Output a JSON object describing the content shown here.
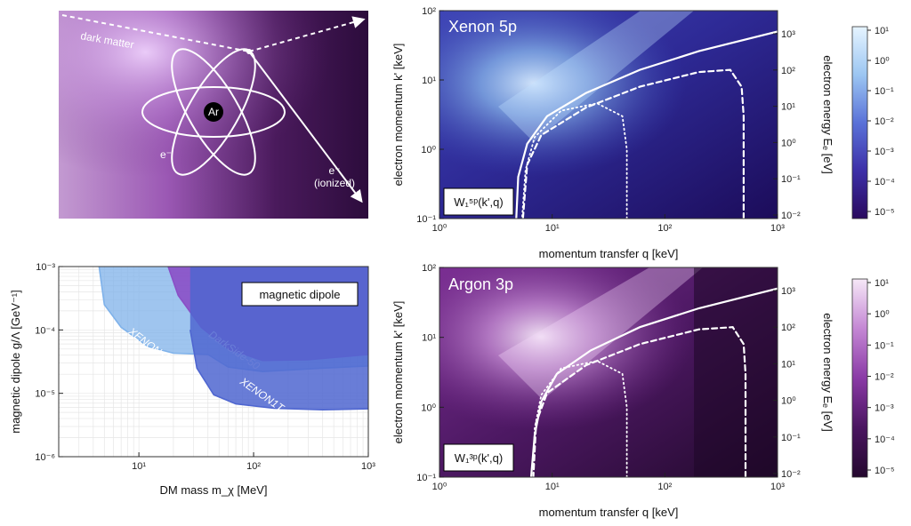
{
  "schematic": {
    "dark_matter_label": "dark matter",
    "nucleus_label": "Ar",
    "electron_label": "e⁻",
    "outgoing_label": "e⁻",
    "outgoing_sub": "(ionized)"
  },
  "chart_data": [
    {
      "type": "heatmap",
      "title": "Xenon 5p",
      "inset_label": "W₁⁵ᵖ(k',q)",
      "xlabel": "momentum transfer q [keV]",
      "ylabel": "electron momentum k' [keV]",
      "y2label": "electron energy Eₑ [eV]",
      "xlim": [
        1,
        1000
      ],
      "ylim": [
        0.1,
        100
      ],
      "xscale": "log",
      "yscale": "log",
      "x_ticks": [
        "10⁰",
        "10¹",
        "10²",
        "10³"
      ],
      "y_ticks": [
        "10⁻¹",
        "10⁰",
        "10¹",
        "10²"
      ],
      "y2_ticks": [
        "10⁻²",
        "10⁻¹",
        "10⁰",
        "10¹",
        "10²",
        "10³"
      ],
      "colorbar_ticks": [
        "10¹",
        "10⁰",
        "10⁻¹",
        "10⁻²",
        "10⁻³",
        "10⁻⁴",
        "10⁻⁵"
      ],
      "colormap": [
        "#2a0a5e",
        "#3d2fa8",
        "#5a72d8",
        "#9cc6f2",
        "#e6f4ff"
      ],
      "solid_curve": [
        [
          4.8,
          0.1
        ],
        [
          5,
          0.4
        ],
        [
          6,
          1.2
        ],
        [
          9,
          3
        ],
        [
          20,
          6.5
        ],
        [
          60,
          14
        ],
        [
          200,
          26
        ],
        [
          1000,
          50
        ]
      ],
      "dashed_curve": [
        [
          500,
          0.1
        ],
        [
          500,
          3
        ],
        [
          480,
          8
        ],
        [
          380,
          14
        ],
        [
          200,
          13
        ],
        [
          60,
          8
        ],
        [
          20,
          4
        ],
        [
          8,
          1.6
        ],
        [
          6,
          0.6
        ],
        [
          5.5,
          0.1
        ]
      ],
      "dotted_curve": [
        [
          46,
          0.1
        ],
        [
          46,
          1
        ],
        [
          42,
          3
        ],
        [
          25,
          4.6
        ],
        [
          12,
          3.6
        ],
        [
          7,
          1.5
        ],
        [
          5.8,
          0.5
        ],
        [
          5.4,
          0.1
        ]
      ]
    },
    {
      "type": "heatmap",
      "title": "Argon 3p",
      "inset_label": "W₁³ᵖ(k',q)",
      "xlabel": "momentum transfer q [keV]",
      "ylabel": "electron momentum k' [keV]",
      "y2label": "electron energy Eₑ [eV]",
      "xlim": [
        1,
        1000
      ],
      "ylim": [
        0.1,
        100
      ],
      "xscale": "log",
      "yscale": "log",
      "x_ticks": [
        "10⁰",
        "10¹",
        "10²",
        "10³"
      ],
      "y_ticks": [
        "10⁻¹",
        "10⁰",
        "10¹",
        "10²"
      ],
      "y2_ticks": [
        "10⁻²",
        "10⁻¹",
        "10⁰",
        "10¹",
        "10²",
        "10³"
      ],
      "colorbar_ticks": [
        "10¹",
        "10⁰",
        "10⁻¹",
        "10⁻²",
        "10⁻³",
        "10⁻⁴",
        "10⁻⁵"
      ],
      "colormap": [
        "#24082e",
        "#4a1560",
        "#8a3aa6",
        "#c487d4",
        "#f6e8f7"
      ],
      "solid_curve": [
        [
          6.5,
          0.1
        ],
        [
          7,
          0.4
        ],
        [
          8,
          1.2
        ],
        [
          11,
          3
        ],
        [
          22,
          6.5
        ],
        [
          60,
          14
        ],
        [
          200,
          26
        ],
        [
          1000,
          50
        ]
      ],
      "dashed_curve": [
        [
          520,
          0.1
        ],
        [
          520,
          3
        ],
        [
          500,
          8
        ],
        [
          400,
          14
        ],
        [
          200,
          13
        ],
        [
          60,
          8
        ],
        [
          20,
          4
        ],
        [
          9,
          1.6
        ],
        [
          7.2,
          0.6
        ],
        [
          6.8,
          0.1
        ]
      ],
      "dotted_curve": [
        [
          46,
          0.1
        ],
        [
          46,
          1
        ],
        [
          42,
          3
        ],
        [
          25,
          4.6
        ],
        [
          12,
          3.6
        ],
        [
          8,
          1.5
        ],
        [
          7,
          0.5
        ],
        [
          6.8,
          0.1
        ]
      ]
    },
    {
      "type": "area",
      "legend_box": "magnetic dipole",
      "xlabel": "DM mass m_χ [MeV]",
      "ylabel": "magnetic dipole g/Λ [GeV⁻¹]",
      "xlim": [
        2,
        1000
      ],
      "ylim": [
        1e-06,
        0.001
      ],
      "xscale": "log",
      "yscale": "log",
      "x_ticks": [
        "10¹",
        "10²",
        "10³"
      ],
      "y_ticks": [
        "10⁻⁶",
        "10⁻⁵",
        "10⁻⁴",
        "10⁻³"
      ],
      "series": [
        {
          "name": "XENON10",
          "color": "#7fb2ea",
          "boundary": [
            [
              4.5,
              0.001
            ],
            [
              5,
              0.00025
            ],
            [
              7,
              0.00011
            ],
            [
              12,
              5.5e-05
            ],
            [
              20,
              4.3e-05
            ],
            [
              40,
              4.1e-05
            ],
            [
              60,
              2.6e-05
            ],
            [
              120,
              2.2e-05
            ],
            [
              400,
              2.5e-05
            ],
            [
              1000,
              2.7e-05
            ]
          ]
        },
        {
          "name": "DarkSide-50",
          "color": "#8a4fc6",
          "boundary": [
            [
              18,
              0.001
            ],
            [
              22,
              0.00035
            ],
            [
              35,
              0.00011
            ],
            [
              60,
              5e-05
            ],
            [
              120,
              3.3e-05
            ],
            [
              300,
              3.4e-05
            ],
            [
              1000,
              4.1e-05
            ]
          ]
        },
        {
          "name": "XENON1T",
          "color": "#4f66d0",
          "boundary": [
            [
              28,
              0.0001
            ],
            [
              32,
              2.5e-05
            ],
            [
              45,
              9.5e-06
            ],
            [
              70,
              6.8e-06
            ],
            [
              150,
              5.8e-06
            ],
            [
              400,
              5.5e-06
            ],
            [
              1000,
              5.7e-06
            ]
          ]
        }
      ]
    }
  ]
}
